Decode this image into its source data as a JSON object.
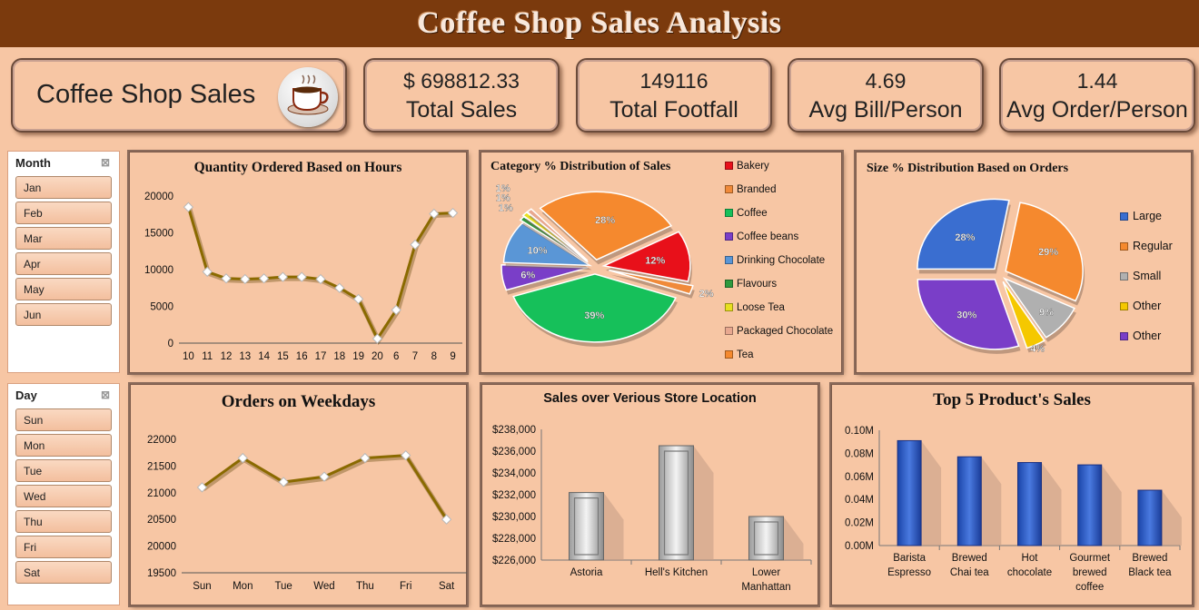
{
  "title": "Coffee Shop Sales Analysis",
  "kpis": {
    "main_label": "Coffee Shop Sales",
    "total_sales_value": "$ 698812.33",
    "total_sales_label": "Total Sales",
    "footfall_value": "149116",
    "footfall_label": "Total Footfall",
    "avg_bill_value": "4.69",
    "avg_bill_label": "Avg Bill/Person",
    "avg_order_value": "1.44",
    "avg_order_label": "Avg Order/Person"
  },
  "month_slicer": {
    "header": "Month",
    "items": [
      "Jan",
      "Feb",
      "Mar",
      "Apr",
      "May",
      "Jun"
    ]
  },
  "day_slicer": {
    "header": "Day",
    "items": [
      "Sun",
      "Mon",
      "Tue",
      "Wed",
      "Thu",
      "Fri",
      "Sat"
    ]
  },
  "colors": {
    "title_bar": "#7b3a0d",
    "background": "#f7c6a4",
    "line": "#7a5a00",
    "bar": "#2f5fc4"
  },
  "chart_data": [
    {
      "id": "hours",
      "type": "line",
      "title": "Quantity Ordered  Based on Hours",
      "x": [
        "10",
        "11",
        "12",
        "13",
        "14",
        "15",
        "16",
        "17",
        "18",
        "19",
        "20",
        "6",
        "7",
        "8",
        "9"
      ],
      "values": [
        18500,
        9700,
        8800,
        8700,
        8800,
        9000,
        9000,
        8700,
        7500,
        6000,
        600,
        4500,
        13400,
        17600,
        17700
      ],
      "ylim": [
        0,
        20000
      ],
      "yticks": [
        "20000",
        "15000",
        "10000",
        "5000",
        "0"
      ]
    },
    {
      "id": "category",
      "type": "pie",
      "title": "Category % Distribution  of Sales",
      "legend_position": "right",
      "slices": [
        {
          "name": "Bakery",
          "value": 12,
          "label": "12%",
          "color": "#e8101a"
        },
        {
          "name": "Branded",
          "value": 2,
          "label": "2%",
          "color": "#f08a3a"
        },
        {
          "name": "Coffee",
          "value": 39,
          "label": "39%",
          "color": "#16c05a"
        },
        {
          "name": "Coffee beans",
          "value": 6,
          "label": "6%",
          "color": "#7a3ec8"
        },
        {
          "name": "Drinking Chocolate",
          "value": 10,
          "label": "10%",
          "color": "#5a96d6"
        },
        {
          "name": "Flavours",
          "value": 1,
          "label": "1%",
          "color": "#2e9a3e"
        },
        {
          "name": "Loose Tea",
          "value": 1,
          "label": "1%",
          "color": "#e8e020"
        },
        {
          "name": "Packaged Chocolate",
          "value": 1,
          "label": "1%",
          "color": "#e8a890"
        },
        {
          "name": "Tea",
          "value": 28,
          "label": "28%",
          "color": "#f5892e"
        }
      ]
    },
    {
      "id": "size",
      "type": "pie",
      "title": "Size % Distribution  Based on Orders",
      "legend_position": "right",
      "slices": [
        {
          "name": "Large",
          "value": 28,
          "label": "28%",
          "color": "#3a6ed0"
        },
        {
          "name": "Regular",
          "value": 29,
          "label": "29%",
          "color": "#f5892e"
        },
        {
          "name": "Small",
          "value": 9,
          "label": "9%",
          "color": "#b0b0b0"
        },
        {
          "name": "Other",
          "value": 4,
          "label": "4%",
          "color": "#f5c800"
        },
        {
          "name": "Other",
          "value": 30,
          "label": "30%",
          "color": "#7a3ec8"
        }
      ]
    },
    {
      "id": "weekdays",
      "type": "line",
      "title": "Orders  on Weekdays",
      "x": [
        "Sun",
        "Mon",
        "Tue",
        "Wed",
        "Thu",
        "Fri",
        "Sat"
      ],
      "values": [
        21100,
        21650,
        21200,
        21300,
        21650,
        21700,
        20500
      ],
      "ylim": [
        19500,
        22000
      ],
      "yticks": [
        "22000",
        "21500",
        "21000",
        "20500",
        "20000",
        "19500"
      ]
    },
    {
      "id": "store",
      "type": "bar",
      "title": "Sales over Verious Store Location",
      "categories": [
        "Astoria",
        "Hell's Kitchen",
        "Lower Manhattan"
      ],
      "values": [
        232200,
        236500,
        230000
      ],
      "ylim": [
        226000,
        238000
      ],
      "yticks": [
        "$238,000",
        "$236,000",
        "$234,000",
        "$232,000",
        "$230,000",
        "$228,000",
        "$226,000"
      ]
    },
    {
      "id": "products",
      "type": "bar",
      "title": "Top 5 Product's Sales",
      "categories": [
        "Barista Espresso",
        "Brewed Chai tea",
        "Hot chocolate",
        "Gourmet brewed coffee",
        "Brewed Black tea"
      ],
      "values": [
        91000,
        77000,
        72000,
        70000,
        48000
      ],
      "ylim": [
        0,
        100000
      ],
      "yticks": [
        "0.10M",
        "0.08M",
        "0.06M",
        "0.04M",
        "0.02M",
        "0.00M"
      ]
    }
  ]
}
